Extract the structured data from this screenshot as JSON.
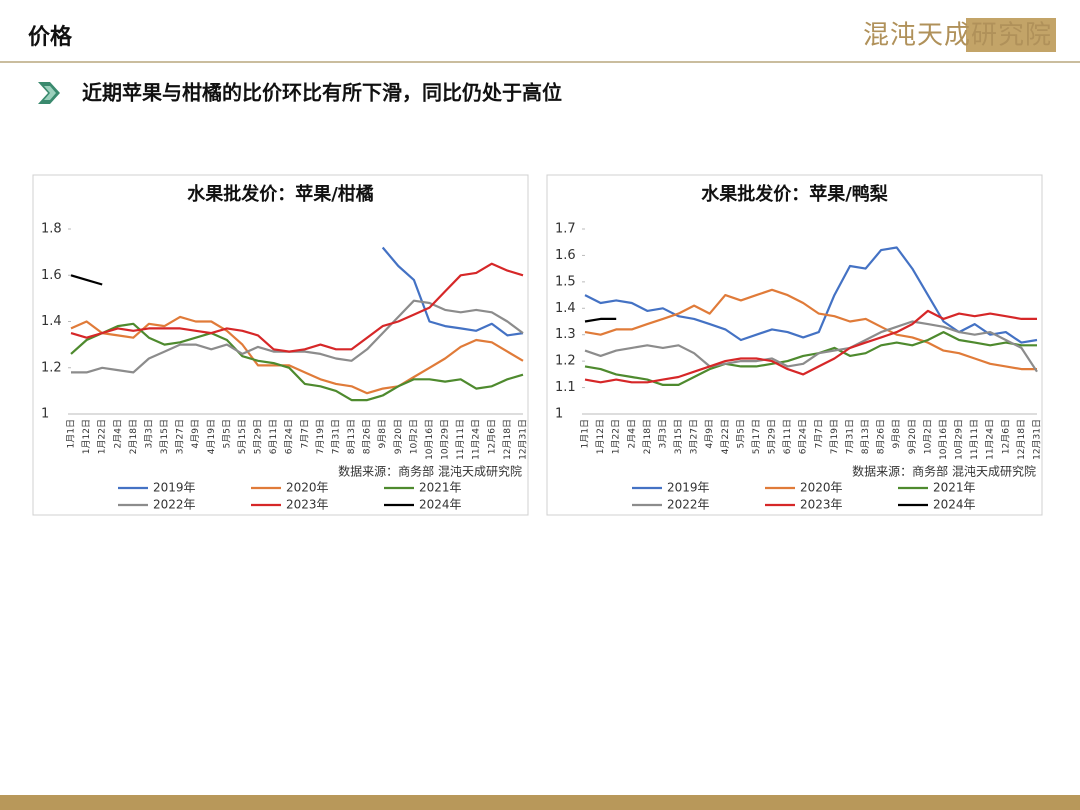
{
  "header": {
    "title": "价格",
    "logo": "混沌天成研究院"
  },
  "subtitle": "近期苹果与柑橘的比价环比有所下滑，同比仍处于高位",
  "chart_data": [
    {
      "type": "line",
      "title": "水果批发价：苹果/柑橘",
      "source": "数据来源：商务部  混沌天成研究院",
      "categories": [
        "1月1日",
        "1月12日",
        "1月22日",
        "2月4日",
        "2月18日",
        "3月3日",
        "3月15日",
        "3月27日",
        "4月9日",
        "4月19日",
        "5月5日",
        "5月15日",
        "5月29日",
        "6月11日",
        "6月24日",
        "7月7日",
        "7月19日",
        "7月31日",
        "8月13日",
        "8月26日",
        "9月8日",
        "9月20日",
        "10月2日",
        "10月16日",
        "10月29日",
        "11月11日",
        "11月24日",
        "12月6日",
        "12月18日",
        "12月31日"
      ],
      "ylim": [
        1,
        1.8
      ],
      "yticks": [
        1,
        1.2,
        1.4,
        1.6,
        1.8
      ],
      "series": [
        {
          "name": "2019年",
          "color": "#4472c4",
          "values": [
            null,
            null,
            null,
            null,
            null,
            null,
            null,
            null,
            null,
            null,
            null,
            null,
            null,
            null,
            null,
            null,
            null,
            null,
            null,
            null,
            1.72,
            1.64,
            1.58,
            1.4,
            1.38,
            1.37,
            1.36,
            1.39,
            1.34,
            1.35
          ]
        },
        {
          "name": "2020年",
          "color": "#e07b39",
          "values": [
            1.37,
            1.4,
            1.35,
            1.34,
            1.33,
            1.39,
            1.38,
            1.42,
            1.4,
            1.4,
            1.36,
            1.3,
            1.21,
            1.21,
            1.21,
            1.18,
            1.15,
            1.13,
            1.12,
            1.09,
            1.11,
            1.12,
            1.16,
            1.2,
            1.24,
            1.29,
            1.32,
            1.31,
            1.27,
            1.23
          ]
        },
        {
          "name": "2021年",
          "color": "#4e8a2e",
          "values": [
            1.26,
            1.32,
            1.35,
            1.38,
            1.39,
            1.33,
            1.3,
            1.31,
            1.33,
            1.35,
            1.32,
            1.25,
            1.23,
            1.22,
            1.2,
            1.13,
            1.12,
            1.1,
            1.06,
            1.06,
            1.08,
            1.12,
            1.15,
            1.15,
            1.14,
            1.15,
            1.11,
            1.12,
            1.15,
            1.17
          ]
        },
        {
          "name": "2022年",
          "color": "#8c8c8c",
          "values": [
            1.18,
            1.18,
            1.2,
            1.19,
            1.18,
            1.24,
            1.27,
            1.3,
            1.3,
            1.28,
            1.3,
            1.26,
            1.29,
            1.27,
            1.27,
            1.27,
            1.26,
            1.24,
            1.23,
            1.28,
            1.35,
            1.42,
            1.49,
            1.48,
            1.45,
            1.44,
            1.45,
            1.44,
            1.4,
            1.35
          ]
        },
        {
          "name": "2023年",
          "color": "#d62728",
          "values": [
            1.35,
            1.33,
            1.35,
            1.37,
            1.36,
            1.37,
            1.37,
            1.37,
            1.36,
            1.35,
            1.37,
            1.36,
            1.34,
            1.28,
            1.27,
            1.28,
            1.3,
            1.28,
            1.28,
            1.33,
            1.38,
            1.4,
            1.43,
            1.46,
            1.53,
            1.6,
            1.61,
            1.65,
            1.62,
            1.6
          ]
        },
        {
          "name": "2024年",
          "color": "#000000",
          "values": [
            1.6,
            1.58,
            1.56,
            null,
            null,
            null,
            null,
            null,
            null,
            null,
            null,
            null,
            null,
            null,
            null,
            null,
            null,
            null,
            null,
            null,
            null,
            null,
            null,
            null,
            null,
            null,
            null,
            null,
            null,
            null
          ]
        }
      ]
    },
    {
      "type": "line",
      "title": "水果批发价：苹果/鸭梨",
      "source": "数据来源：商务部  混沌天成研究院",
      "categories": [
        "1月1日",
        "1月12日",
        "1月22日",
        "2月4日",
        "2月18日",
        "3月3日",
        "3月15日",
        "3月27日",
        "4月9日",
        "4月22日",
        "5月5日",
        "5月17日",
        "5月29日",
        "6月11日",
        "6月24日",
        "7月7日",
        "7月19日",
        "7月31日",
        "8月13日",
        "8月26日",
        "9月8日",
        "9月20日",
        "10月2日",
        "10月16日",
        "10月29日",
        "11月11日",
        "11月24日",
        "12月6日",
        "12月18日",
        "12月31日"
      ],
      "ylim": [
        1,
        1.7
      ],
      "yticks": [
        1,
        1.1,
        1.2,
        1.3,
        1.4,
        1.5,
        1.6,
        1.7
      ],
      "series": [
        {
          "name": "2019年",
          "color": "#4472c4",
          "values": [
            1.45,
            1.42,
            1.43,
            1.42,
            1.39,
            1.4,
            1.37,
            1.36,
            1.34,
            1.32,
            1.28,
            1.3,
            1.32,
            1.31,
            1.29,
            1.31,
            1.45,
            1.56,
            1.55,
            1.62,
            1.63,
            1.55,
            1.45,
            1.35,
            1.31,
            1.34,
            1.3,
            1.31,
            1.27,
            1.28
          ]
        },
        {
          "name": "2020年",
          "color": "#e07b39",
          "values": [
            1.31,
            1.3,
            1.32,
            1.32,
            1.34,
            1.36,
            1.38,
            1.41,
            1.38,
            1.45,
            1.43,
            1.45,
            1.47,
            1.45,
            1.42,
            1.38,
            1.37,
            1.35,
            1.36,
            1.33,
            1.3,
            1.29,
            1.27,
            1.24,
            1.23,
            1.21,
            1.19,
            1.18,
            1.17,
            1.17
          ]
        },
        {
          "name": "2021年",
          "color": "#4e8a2e",
          "values": [
            1.18,
            1.17,
            1.15,
            1.14,
            1.13,
            1.11,
            1.11,
            1.14,
            1.17,
            1.19,
            1.18,
            1.18,
            1.19,
            1.2,
            1.22,
            1.23,
            1.25,
            1.22,
            1.23,
            1.26,
            1.27,
            1.26,
            1.28,
            1.31,
            1.28,
            1.27,
            1.26,
            1.27,
            1.26,
            1.26
          ]
        },
        {
          "name": "2022年",
          "color": "#8c8c8c",
          "values": [
            1.24,
            1.22,
            1.24,
            1.25,
            1.26,
            1.25,
            1.26,
            1.23,
            1.18,
            1.19,
            1.2,
            1.2,
            1.21,
            1.18,
            1.19,
            1.23,
            1.24,
            1.25,
            1.28,
            1.31,
            1.33,
            1.35,
            1.34,
            1.33,
            1.31,
            1.3,
            1.31,
            1.28,
            1.25,
            1.16
          ]
        },
        {
          "name": "2023年",
          "color": "#d62728",
          "values": [
            1.13,
            1.12,
            1.13,
            1.12,
            1.12,
            1.13,
            1.14,
            1.16,
            1.18,
            1.2,
            1.21,
            1.21,
            1.2,
            1.17,
            1.15,
            1.18,
            1.21,
            1.25,
            1.27,
            1.29,
            1.31,
            1.34,
            1.39,
            1.36,
            1.38,
            1.37,
            1.38,
            1.37,
            1.36,
            1.36
          ]
        },
        {
          "name": "2024年",
          "color": "#000000",
          "values": [
            1.35,
            1.36,
            1.36,
            null,
            null,
            null,
            null,
            null,
            null,
            null,
            null,
            null,
            null,
            null,
            null,
            null,
            null,
            null,
            null,
            null,
            null,
            null,
            null,
            null,
            null,
            null,
            null,
            null,
            null,
            null
          ]
        }
      ]
    }
  ]
}
